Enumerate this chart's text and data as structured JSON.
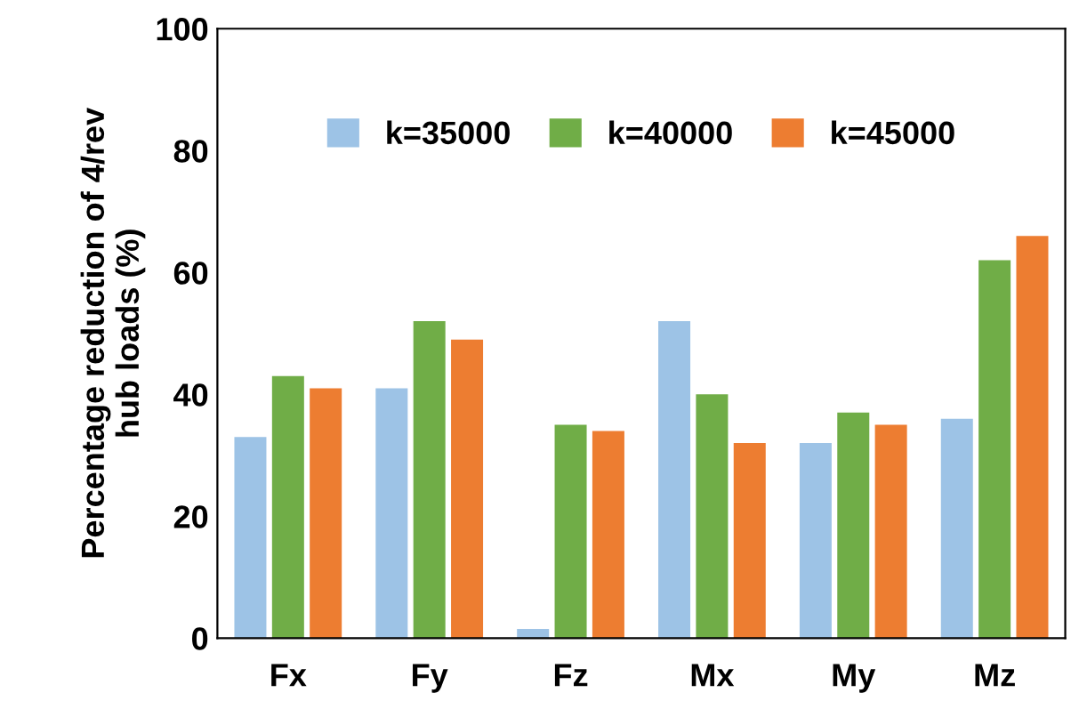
{
  "chart_data": {
    "type": "bar",
    "ylabel": "Percentage reduction of 4/rev\nhub loads (%)",
    "categories": [
      "Fx",
      "Fy",
      "Fz",
      "Mx",
      "My",
      "Mz"
    ],
    "series": [
      {
        "name": "k=35000",
        "color": "#9dc3e6",
        "values": [
          33,
          41,
          1.5,
          52,
          32,
          36
        ]
      },
      {
        "name": "k=40000",
        "color": "#70ad47",
        "values": [
          43,
          52,
          35,
          40,
          37,
          62
        ]
      },
      {
        "name": "k=45000",
        "color": "#ed7d31",
        "values": [
          41,
          49,
          34,
          32,
          35,
          66
        ]
      }
    ],
    "ylim": [
      0,
      100
    ],
    "yticks": [
      0,
      20,
      40,
      60,
      80,
      100
    ],
    "grid": false,
    "legend": "top"
  }
}
